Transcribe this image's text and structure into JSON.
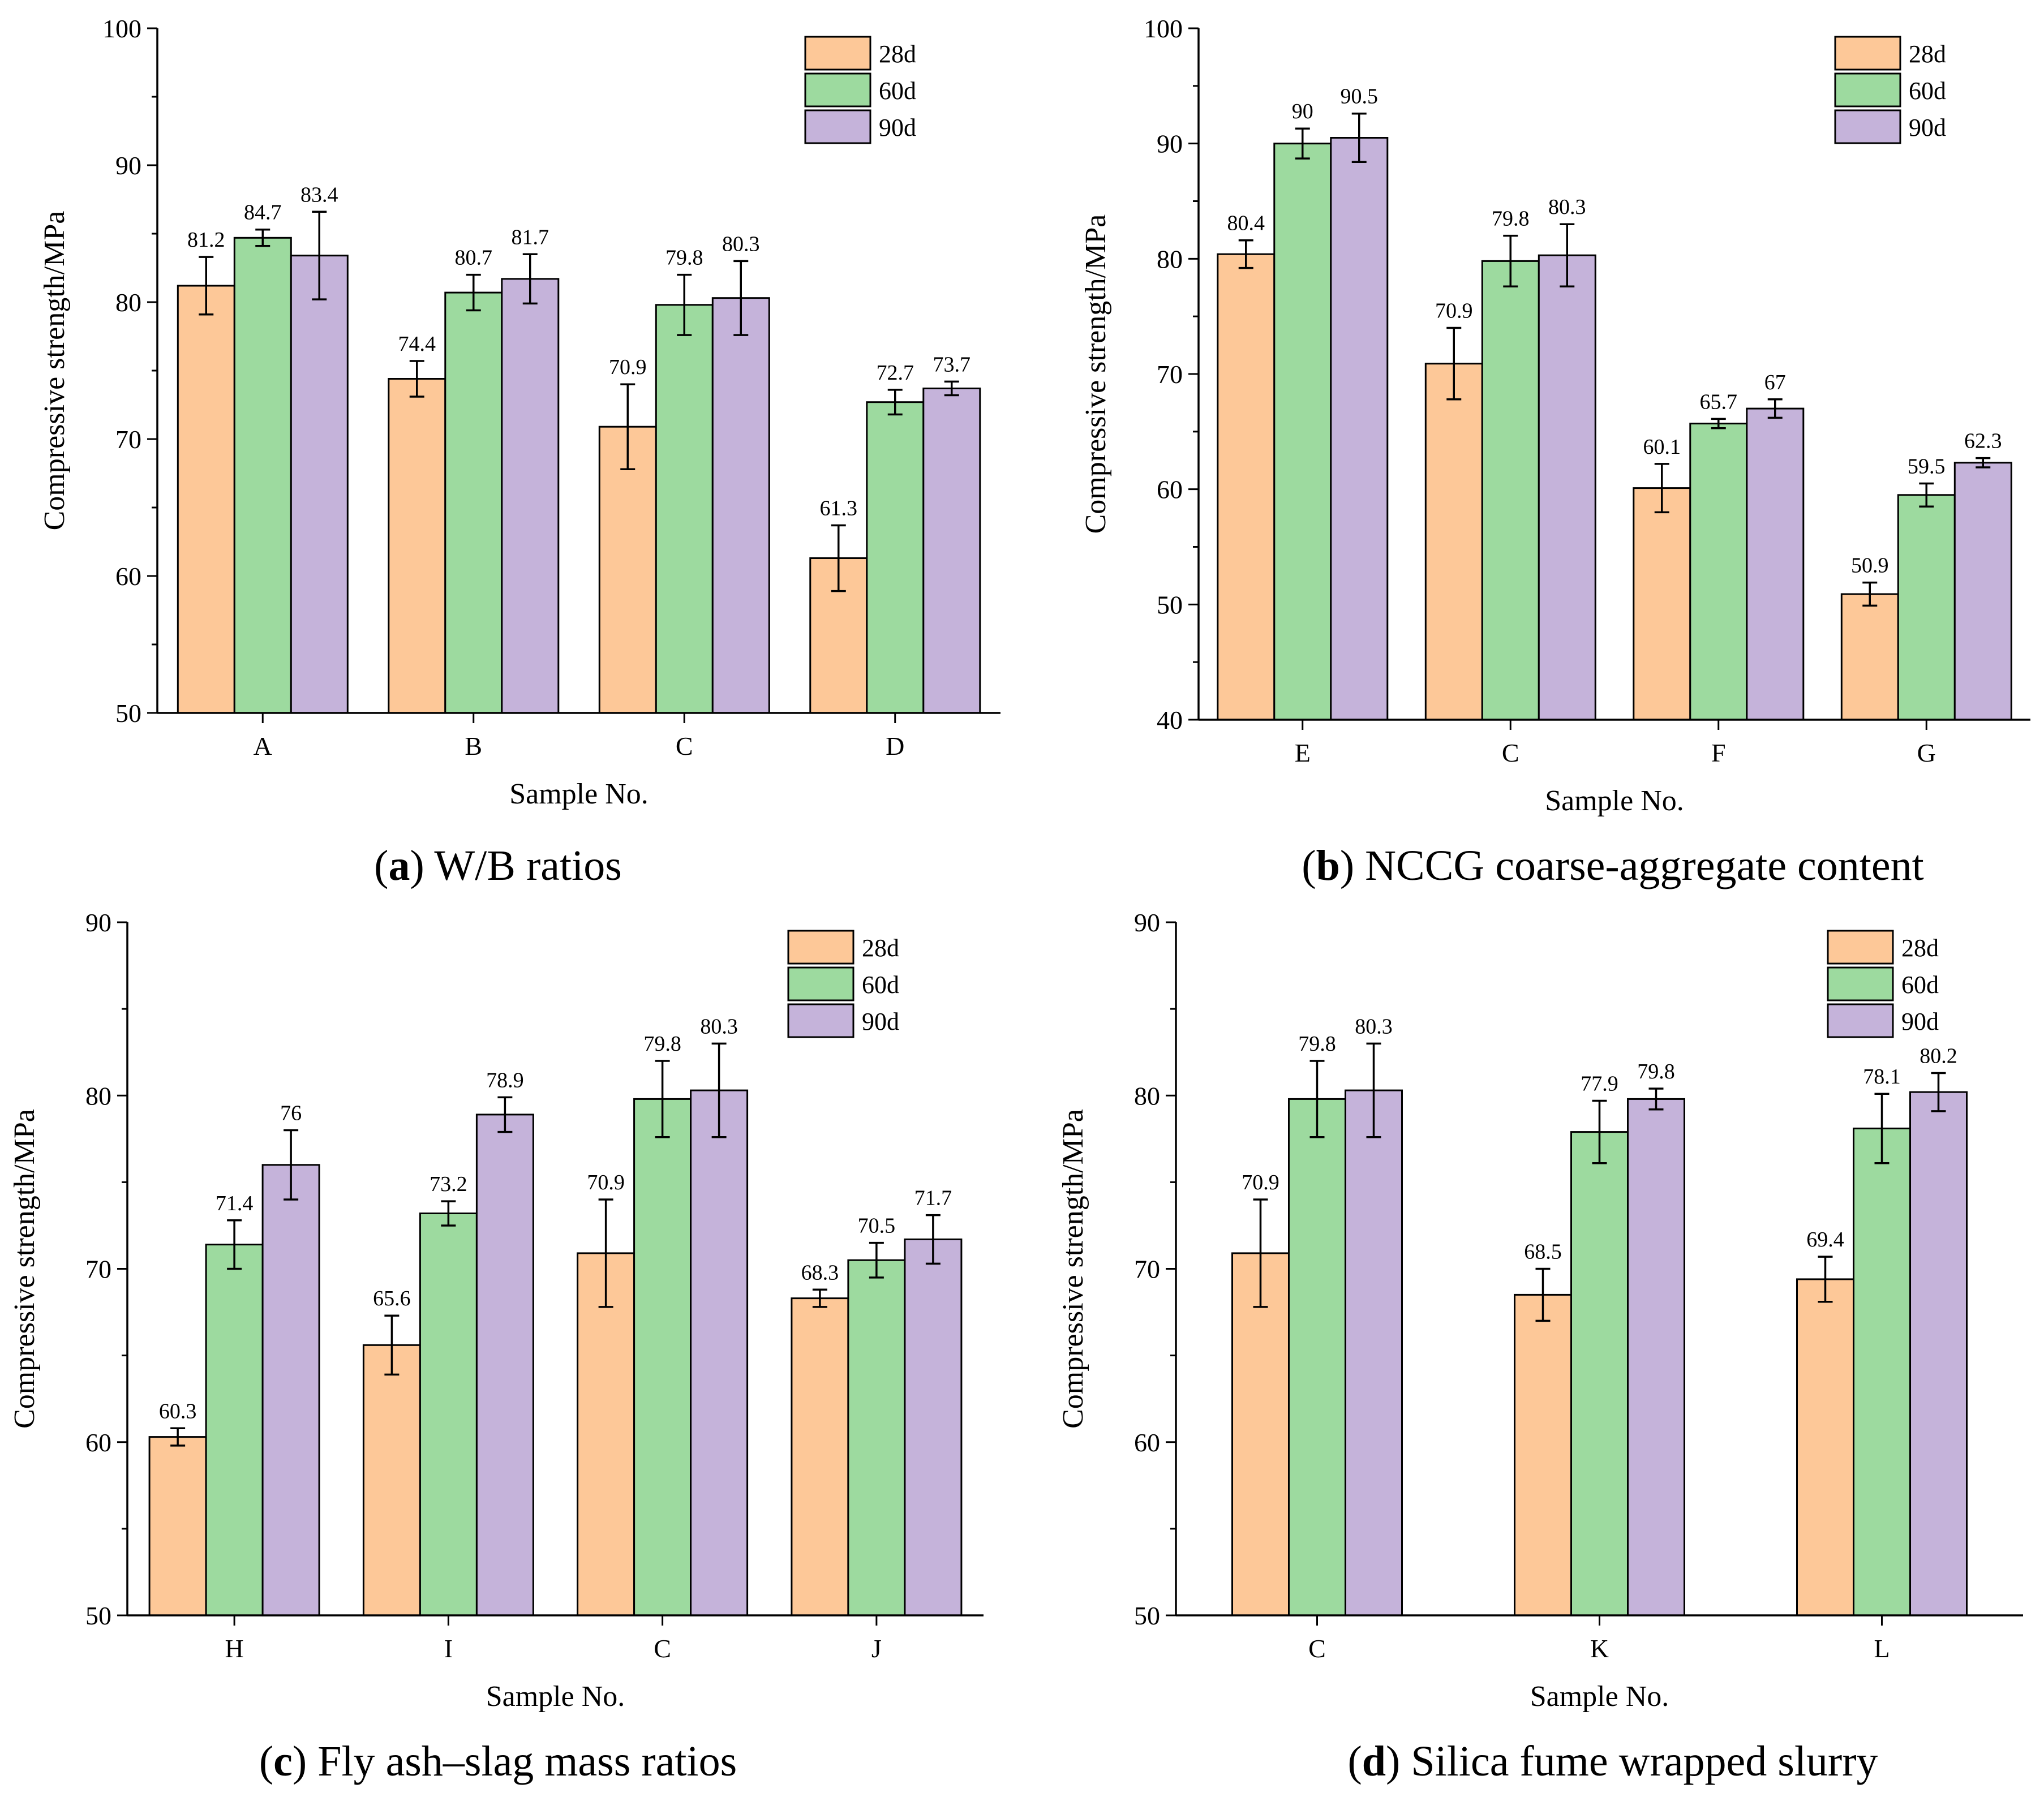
{
  "colors": {
    "28d": "#FDC898",
    "60d": "#9DDA9F",
    "90d": "#C5B3DA",
    "edge": "#000000"
  },
  "chart_data": [
    {
      "id": "a",
      "type": "bar",
      "title": "",
      "caption": {
        "letter": "a",
        "text": " W/B ratios"
      },
      "xlabel": "Sample No.",
      "ylabel": "Compressive strength/MPa",
      "ylim": [
        50,
        100
      ],
      "yticks": [
        50,
        60,
        70,
        80,
        90,
        100
      ],
      "grid": false,
      "legend": "top-right",
      "categories": [
        "A",
        "B",
        "C",
        "D"
      ],
      "series": [
        {
          "name": "28d",
          "values": [
            81.2,
            74.4,
            70.9,
            61.3
          ],
          "labels": [
            "81.2",
            "74.4",
            "70.9",
            "61.3"
          ],
          "errors": [
            2.1,
            1.3,
            3.1,
            2.4
          ]
        },
        {
          "name": "60d",
          "values": [
            84.7,
            80.7,
            79.8,
            72.7
          ],
          "labels": [
            "84.7",
            "80.7",
            "79.8",
            "72.7"
          ],
          "errors": [
            0.6,
            1.3,
            2.2,
            0.9
          ]
        },
        {
          "name": "90d",
          "values": [
            83.4,
            81.7,
            80.3,
            73.7
          ],
          "labels": [
            "83.4",
            "81.7",
            "80.3",
            "73.7"
          ],
          "errors": [
            3.2,
            1.8,
            2.7,
            0.5
          ]
        }
      ]
    },
    {
      "id": "b",
      "type": "bar",
      "title": "",
      "caption": {
        "letter": "b",
        "text": " NCCG coarse-aggregate content"
      },
      "xlabel": "Sample No.",
      "ylabel": "Compressive strength/MPa",
      "ylim": [
        40,
        100
      ],
      "yticks": [
        40,
        50,
        60,
        70,
        80,
        90,
        100
      ],
      "grid": false,
      "legend": "top-right",
      "categories": [
        "E",
        "C",
        "F",
        "G"
      ],
      "series": [
        {
          "name": "28d",
          "values": [
            80.4,
            70.9,
            60.1,
            50.9
          ],
          "labels": [
            "80.4",
            "70.9",
            "60.1",
            "50.9"
          ],
          "errors": [
            1.2,
            3.1,
            2.1,
            1.0
          ]
        },
        {
          "name": "60d",
          "values": [
            90,
            79.8,
            65.7,
            59.5
          ],
          "labels": [
            "90",
            "79.8",
            "65.7",
            "59.5"
          ],
          "errors": [
            1.3,
            2.2,
            0.4,
            1.0
          ]
        },
        {
          "name": "90d",
          "values": [
            90.5,
            80.3,
            67,
            62.3
          ],
          "labels": [
            "90.5",
            "80.3",
            "67",
            "62.3"
          ],
          "errors": [
            2.1,
            2.7,
            0.8,
            0.4
          ]
        }
      ]
    },
    {
      "id": "c",
      "type": "bar",
      "title": "",
      "caption": {
        "letter": "c",
        "text": " Fly ash–slag mass ratios"
      },
      "xlabel": "Sample No.",
      "ylabel": "Compressive strength/MPa",
      "ylim": [
        50,
        90
      ],
      "yticks": [
        50,
        60,
        70,
        80,
        90
      ],
      "grid": false,
      "legend": "top-right",
      "categories": [
        "H",
        "I",
        "C",
        "J"
      ],
      "series": [
        {
          "name": "28d",
          "values": [
            60.3,
            65.6,
            70.9,
            68.3
          ],
          "labels": [
            "60.3",
            "65.6",
            "70.9",
            "68.3"
          ],
          "errors": [
            0.5,
            1.7,
            3.1,
            0.5
          ]
        },
        {
          "name": "60d",
          "values": [
            71.4,
            73.2,
            79.8,
            70.5
          ],
          "labels": [
            "71.4",
            "73.2",
            "79.8",
            "70.5"
          ],
          "errors": [
            1.4,
            0.7,
            2.2,
            1.0
          ]
        },
        {
          "name": "90d",
          "values": [
            76,
            78.9,
            80.3,
            71.7
          ],
          "labels": [
            "76",
            "78.9",
            "80.3",
            "71.7"
          ],
          "errors": [
            2.0,
            1.0,
            2.7,
            1.4
          ]
        }
      ]
    },
    {
      "id": "d",
      "type": "bar",
      "title": "",
      "caption": {
        "letter": "d",
        "text": " Silica fume wrapped slurry"
      },
      "xlabel": "Sample No.",
      "ylabel": "Compressive strength/MPa",
      "ylim": [
        50,
        90
      ],
      "yticks": [
        50,
        60,
        70,
        80,
        90
      ],
      "grid": false,
      "legend": "top-right",
      "categories": [
        "C",
        "K",
        "L"
      ],
      "series": [
        {
          "name": "28d",
          "values": [
            70.9,
            68.5,
            69.4
          ],
          "labels": [
            "70.9",
            "68.5",
            "69.4"
          ],
          "errors": [
            3.1,
            1.5,
            1.3
          ]
        },
        {
          "name": "60d",
          "values": [
            79.8,
            77.9,
            78.1
          ],
          "labels": [
            "79.8",
            "77.9",
            "78.1"
          ],
          "errors": [
            2.2,
            1.8,
            2.0
          ]
        },
        {
          "name": "90d",
          "values": [
            80.3,
            79.8,
            80.2
          ],
          "labels": [
            "80.3",
            "79.8",
            "80.2"
          ],
          "errors": [
            2.7,
            0.6,
            1.1
          ]
        }
      ]
    }
  ]
}
